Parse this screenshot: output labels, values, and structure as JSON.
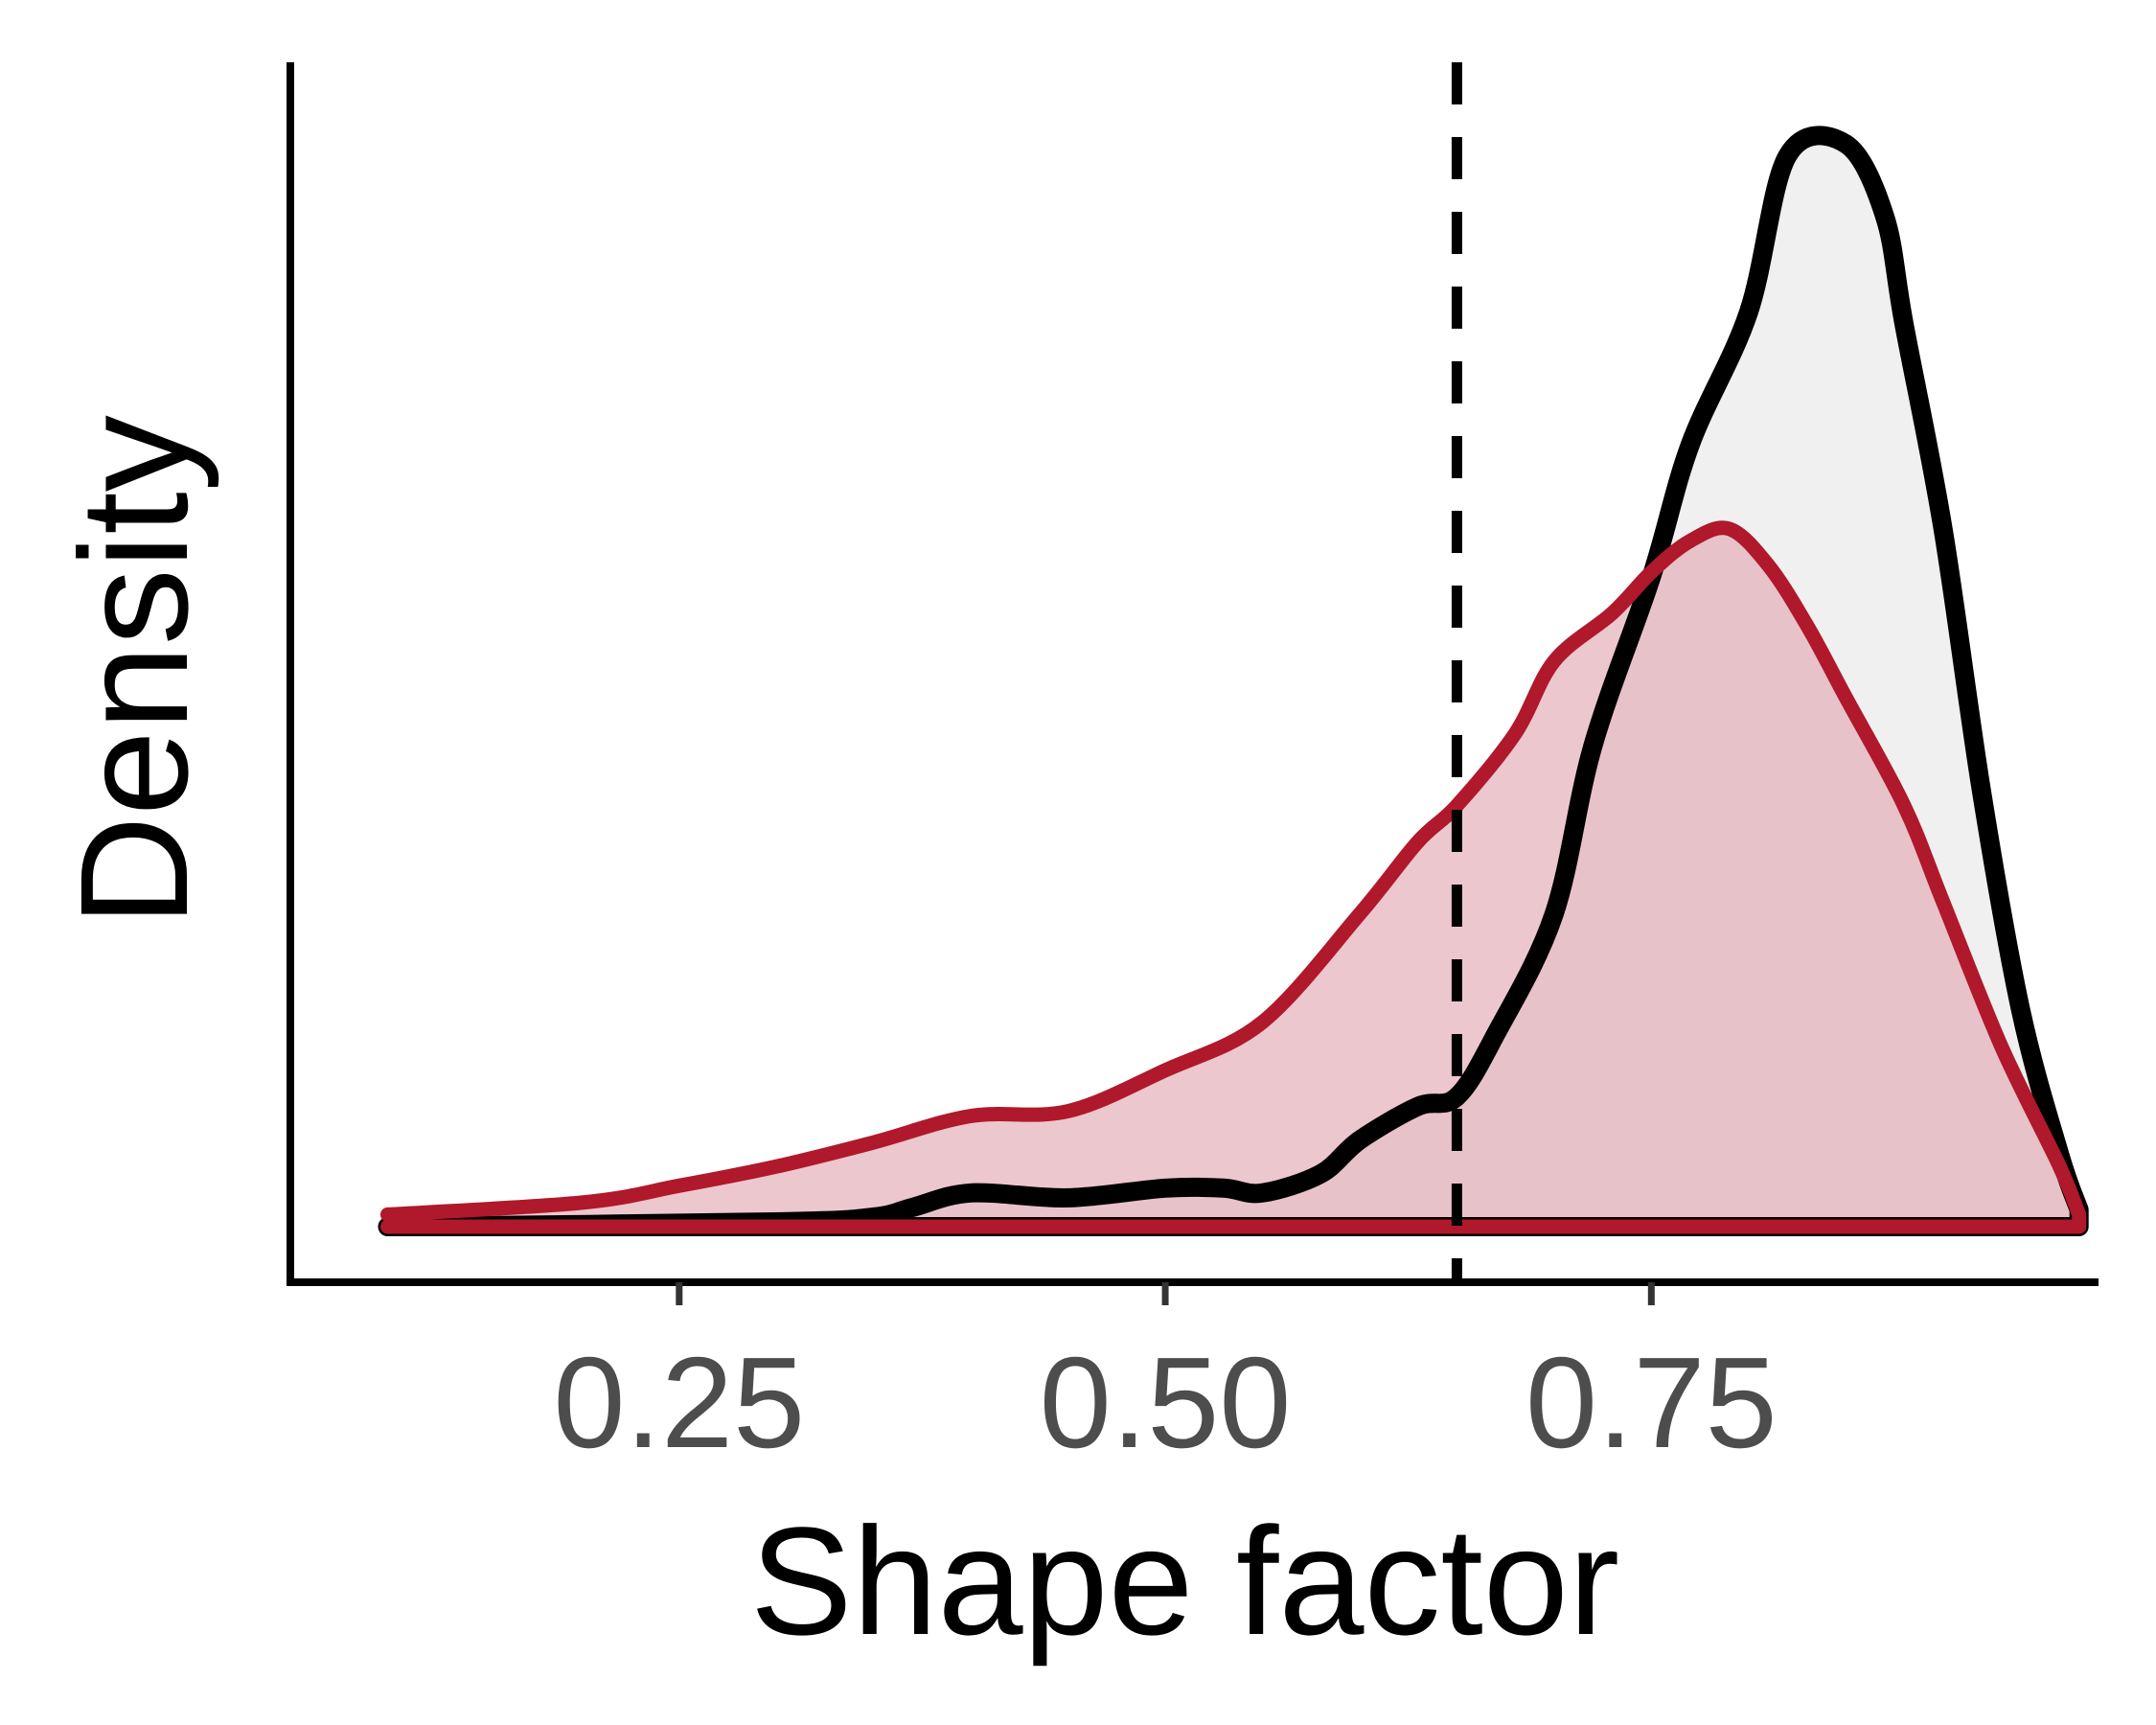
{
  "chart_data": {
    "type": "area",
    "title": "",
    "xlabel": "Shape factor",
    "ylabel": "Density",
    "xlim": [
      0.05,
      0.98
    ],
    "ylim": [
      0,
      4.6
    ],
    "x_ticks": [
      {
        "value": 0.25,
        "label": "0.25"
      },
      {
        "value": 0.5,
        "label": "0.50"
      },
      {
        "value": 0.75,
        "label": "0.75"
      }
    ],
    "y_ticks_shown": false,
    "grid": false,
    "legend": "none",
    "reference_line": {
      "x": 0.65,
      "style": "dashed",
      "color": "#000000"
    },
    "series": [
      {
        "color": "#000000",
        "fill": "#eeeeee",
        "x": [
          0.1,
          0.3,
          0.35,
          0.37,
          0.4,
          0.45,
          0.5,
          0.53,
          0.55,
          0.58,
          0.6,
          0.63,
          0.65,
          0.67,
          0.7,
          0.72,
          0.75,
          0.77,
          0.8,
          0.82,
          0.85,
          0.87,
          0.88,
          0.9,
          0.92,
          0.94,
          0.96,
          0.97
        ],
        "y": [
          0.0,
          0.02,
          0.04,
          0.08,
          0.14,
          0.12,
          0.16,
          0.16,
          0.14,
          0.22,
          0.36,
          0.5,
          0.54,
          0.8,
          1.3,
          2.0,
          2.7,
          3.25,
          3.8,
          4.45,
          4.5,
          4.2,
          3.75,
          2.9,
          1.8,
          0.9,
          0.3,
          0.07
        ]
      },
      {
        "color": "#b0182b",
        "fill": "#e3a9b3",
        "x": [
          0.1,
          0.2,
          0.25,
          0.3,
          0.35,
          0.4,
          0.45,
          0.5,
          0.55,
          0.6,
          0.63,
          0.65,
          0.68,
          0.7,
          0.73,
          0.75,
          0.77,
          0.79,
          0.81,
          0.83,
          0.85,
          0.88,
          0.9,
          0.93,
          0.96,
          0.97
        ],
        "y": [
          0.05,
          0.1,
          0.17,
          0.25,
          0.35,
          0.46,
          0.48,
          0.65,
          0.85,
          1.3,
          1.6,
          1.75,
          2.05,
          2.35,
          2.55,
          2.72,
          2.85,
          2.9,
          2.75,
          2.5,
          2.2,
          1.75,
          1.35,
          0.75,
          0.25,
          0.05
        ]
      }
    ]
  }
}
